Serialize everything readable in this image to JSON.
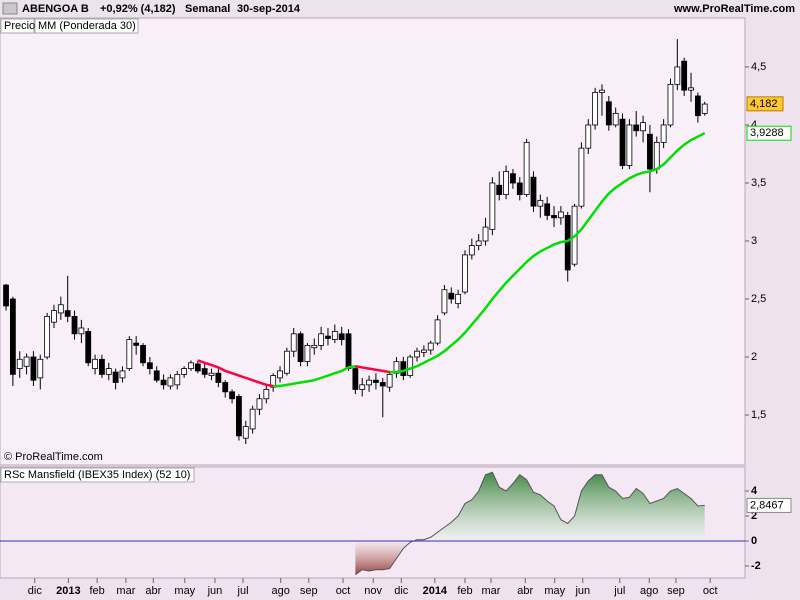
{
  "header": {
    "symbol": "ABENGOA B",
    "change": "+0,92% (4,182)",
    "period": "Semanal",
    "date": "30-sep-2014",
    "site": "www.ProRealTime.com",
    "copyright": "© ProRealTime.com"
  },
  "chart_data": [
    {
      "type": "candlestick",
      "legend_price": "Precio",
      "xlim": [
        -0.88,
        107.88
      ],
      "xticks": [
        {
          "value": 4.2,
          "label": "dic"
        },
        {
          "value": 9.1,
          "label": "2013"
        },
        {
          "value": 13.3,
          "label": "feb"
        },
        {
          "value": 17.5,
          "label": "mar"
        },
        {
          "value": 21.5,
          "label": "abr"
        },
        {
          "value": 26.1,
          "label": "may"
        },
        {
          "value": 30.5,
          "label": "jun"
        },
        {
          "value": 34.6,
          "label": "jul"
        },
        {
          "value": 40.1,
          "label": "ago"
        },
        {
          "value": 44.2,
          "label": "sep"
        },
        {
          "value": 49.2,
          "label": "oct"
        },
        {
          "value": 53.6,
          "label": "nov"
        },
        {
          "value": 57.7,
          "label": "dic"
        },
        {
          "value": 62.6,
          "label": "2014"
        },
        {
          "value": 67.0,
          "label": "feb"
        },
        {
          "value": 70.8,
          "label": "mar"
        },
        {
          "value": 75.8,
          "label": "abr"
        },
        {
          "value": 80.1,
          "label": "may"
        },
        {
          "value": 84.2,
          "label": "jun"
        },
        {
          "value": 89.6,
          "label": "jul"
        },
        {
          "value": 93.9,
          "label": "ago"
        },
        {
          "value": 97.8,
          "label": "sep"
        },
        {
          "value": 102.8,
          "label": "oct"
        }
      ],
      "ylim": [
        1.069,
        4.922
      ],
      "yticks": [
        {
          "value": 1.5,
          "label": "1,5"
        },
        2,
        {
          "value": 2.5,
          "label": "2,5"
        },
        3,
        {
          "value": 3.5,
          "label": "3,5"
        },
        4,
        {
          "value": 4.5,
          "label": "4,5"
        }
      ],
      "up_color": "#ffffff",
      "down_color": "#000000",
      "ohlc": [
        [
          2.62,
          2.63,
          2.4,
          2.44
        ],
        [
          2.5,
          2.52,
          1.75,
          1.85
        ],
        [
          1.9,
          2.05,
          1.82,
          1.98
        ],
        [
          1.92,
          2.03,
          1.85,
          2.0
        ],
        [
          2.0,
          2.05,
          1.75,
          1.8
        ],
        [
          1.82,
          2.02,
          1.72,
          1.98
        ],
        [
          2.0,
          2.38,
          1.98,
          2.35
        ],
        [
          2.3,
          2.45,
          2.25,
          2.4
        ],
        [
          2.38,
          2.52,
          2.32,
          2.45
        ],
        [
          2.4,
          2.7,
          2.3,
          2.35
        ],
        [
          2.35,
          2.4,
          2.15,
          2.2
        ],
        [
          2.2,
          2.32,
          2.12,
          2.25
        ],
        [
          2.22,
          2.25,
          1.92,
          1.95
        ],
        [
          1.9,
          2.02,
          1.85,
          1.98
        ],
        [
          1.98,
          2.02,
          1.82,
          1.85
        ],
        [
          1.85,
          1.95,
          1.8,
          1.9
        ],
        [
          1.87,
          1.9,
          1.72,
          1.78
        ],
        [
          1.82,
          1.92,
          1.78,
          1.88
        ],
        [
          1.9,
          2.18,
          1.88,
          2.15
        ],
        [
          2.12,
          2.18,
          2.02,
          2.1
        ],
        [
          2.1,
          2.12,
          1.92,
          1.95
        ],
        [
          1.95,
          2.0,
          1.85,
          1.9
        ],
        [
          1.88,
          1.92,
          1.78,
          1.8
        ],
        [
          1.8,
          1.85,
          1.72,
          1.76
        ],
        [
          1.75,
          1.85,
          1.72,
          1.82
        ],
        [
          1.76,
          1.88,
          1.72,
          1.85
        ],
        [
          1.85,
          1.92,
          1.82,
          1.9
        ],
        [
          1.9,
          1.97,
          1.88,
          1.95
        ],
        [
          1.94,
          1.97,
          1.86,
          1.88
        ],
        [
          1.9,
          1.94,
          1.82,
          1.85
        ],
        [
          1.84,
          1.9,
          1.8,
          1.86
        ],
        [
          1.86,
          1.9,
          1.74,
          1.78
        ],
        [
          1.78,
          1.8,
          1.65,
          1.7
        ],
        [
          1.7,
          1.72,
          1.6,
          1.64
        ],
        [
          1.66,
          1.68,
          1.28,
          1.32
        ],
        [
          1.3,
          1.45,
          1.25,
          1.4
        ],
        [
          1.38,
          1.58,
          1.34,
          1.55
        ],
        [
          1.55,
          1.68,
          1.5,
          1.64
        ],
        [
          1.64,
          1.76,
          1.6,
          1.72
        ],
        [
          1.74,
          1.86,
          1.7,
          1.84
        ],
        [
          1.82,
          1.92,
          1.78,
          1.88
        ],
        [
          1.86,
          2.08,
          1.84,
          2.05
        ],
        [
          2.05,
          2.25,
          2.0,
          2.2
        ],
        [
          2.2,
          2.22,
          1.92,
          1.96
        ],
        [
          1.96,
          2.12,
          1.92,
          2.1
        ],
        [
          2.08,
          2.16,
          2.02,
          2.1
        ],
        [
          2.1,
          2.26,
          2.06,
          2.2
        ],
        [
          2.18,
          2.25,
          2.1,
          2.16
        ],
        [
          2.15,
          2.28,
          2.12,
          2.22
        ],
        [
          2.2,
          2.26,
          2.1,
          2.15
        ],
        [
          2.2,
          2.24,
          1.88,
          1.9
        ],
        [
          1.9,
          1.92,
          1.68,
          1.72
        ],
        [
          1.72,
          1.82,
          1.66,
          1.76
        ],
        [
          1.76,
          1.84,
          1.7,
          1.8
        ],
        [
          1.8,
          1.86,
          1.72,
          1.78
        ],
        [
          1.78,
          1.82,
          1.48,
          1.75
        ],
        [
          1.74,
          1.88,
          1.7,
          1.85
        ],
        [
          1.86,
          2.0,
          1.82,
          1.96
        ],
        [
          1.96,
          2.0,
          1.8,
          1.84
        ],
        [
          1.84,
          2.02,
          1.82,
          2.0
        ],
        [
          2.0,
          2.08,
          1.96,
          2.05
        ],
        [
          2.04,
          2.1,
          2.0,
          2.06
        ],
        [
          2.06,
          2.14,
          2.02,
          2.12
        ],
        [
          2.12,
          2.36,
          2.1,
          2.32
        ],
        [
          2.38,
          2.62,
          2.36,
          2.58
        ],
        [
          2.55,
          2.6,
          2.46,
          2.5
        ],
        [
          2.46,
          2.58,
          2.42,
          2.54
        ],
        [
          2.56,
          2.92,
          2.54,
          2.88
        ],
        [
          2.88,
          3.02,
          2.84,
          2.96
        ],
        [
          2.96,
          3.06,
          2.92,
          3.0
        ],
        [
          3.0,
          3.2,
          2.96,
          3.12
        ],
        [
          3.1,
          3.55,
          3.05,
          3.5
        ],
        [
          3.48,
          3.6,
          3.35,
          3.4
        ],
        [
          3.4,
          3.65,
          3.36,
          3.6
        ],
        [
          3.58,
          3.62,
          3.45,
          3.5
        ],
        [
          3.5,
          3.55,
          3.35,
          3.4
        ],
        [
          3.4,
          3.88,
          3.38,
          3.85
        ],
        [
          3.55,
          3.6,
          3.25,
          3.3
        ],
        [
          3.3,
          3.4,
          3.2,
          3.35
        ],
        [
          3.32,
          3.38,
          3.18,
          3.22
        ],
        [
          3.22,
          3.3,
          3.12,
          3.2
        ],
        [
          3.2,
          3.3,
          3.14,
          3.25
        ],
        [
          3.22,
          3.25,
          2.65,
          2.75
        ],
        [
          2.8,
          3.32,
          2.78,
          3.3
        ],
        [
          3.3,
          3.85,
          3.28,
          3.8
        ],
        [
          3.8,
          4.05,
          3.75,
          4.0
        ],
        [
          4.0,
          4.32,
          3.96,
          4.28
        ],
        [
          4.28,
          4.35,
          4.08,
          4.3
        ],
        [
          4.2,
          4.25,
          3.95,
          4.0
        ],
        [
          4.0,
          4.15,
          3.98,
          4.1
        ],
        [
          4.05,
          4.1,
          3.62,
          3.65
        ],
        [
          3.65,
          4.05,
          3.62,
          4.0
        ],
        [
          4.0,
          4.12,
          3.9,
          3.95
        ],
        [
          3.95,
          4.08,
          3.85,
          4.02
        ],
        [
          3.92,
          4.0,
          3.42,
          3.62
        ],
        [
          3.62,
          3.9,
          3.58,
          3.85
        ],
        [
          3.85,
          4.05,
          3.8,
          4.0
        ],
        [
          4.0,
          4.4,
          3.98,
          4.35
        ],
        [
          4.35,
          4.74,
          4.3,
          4.5
        ],
        [
          4.55,
          4.58,
          4.25,
          4.3
        ],
        [
          4.3,
          4.45,
          4.2,
          4.32
        ],
        [
          4.25,
          4.28,
          4.02,
          4.08
        ],
        [
          4.1,
          4.2,
          4.08,
          4.18
        ]
      ],
      "last": {
        "value": 4.182,
        "label": "4,182"
      },
      "ma": {
        "name": "MM (Ponderada 30)",
        "color_up": "#00e000",
        "color_down": "#ff0040",
        "last": {
          "value": 3.9288,
          "label": "3,9288"
        },
        "values": [
          null,
          null,
          null,
          null,
          null,
          null,
          null,
          null,
          null,
          null,
          null,
          null,
          null,
          null,
          null,
          null,
          null,
          null,
          null,
          null,
          null,
          null,
          null,
          null,
          null,
          null,
          null,
          null,
          1.97,
          1.95,
          1.93,
          1.91,
          1.88,
          1.86,
          1.84,
          1.82,
          1.8,
          1.78,
          1.76,
          1.75,
          1.75,
          1.76,
          1.77,
          1.78,
          1.79,
          1.8,
          1.82,
          1.84,
          1.86,
          1.88,
          1.91,
          1.92,
          1.91,
          1.9,
          1.89,
          1.88,
          1.87,
          1.87,
          1.88,
          1.9,
          1.92,
          1.95,
          1.98,
          2.01,
          2.05,
          2.1,
          2.15,
          2.21,
          2.28,
          2.35,
          2.42,
          2.5,
          2.57,
          2.64,
          2.7,
          2.76,
          2.82,
          2.87,
          2.91,
          2.94,
          2.97,
          2.99,
          3.0,
          3.04,
          3.1,
          3.18,
          3.26,
          3.34,
          3.41,
          3.46,
          3.5,
          3.54,
          3.57,
          3.59,
          3.6,
          3.62,
          3.66,
          3.72,
          3.78,
          3.83,
          3.87,
          3.9,
          3.93
        ]
      }
    },
    {
      "type": "area",
      "title": "RSc Mansfield (IBEX35 Index) (52 10)",
      "ylim": [
        -2.96,
        5.92
      ],
      "yticks": [
        -2,
        0,
        2,
        4
      ],
      "zero_color": "#3030c0",
      "pos_color": "#2e7d32",
      "neg_color": "#8b2a2a",
      "last": {
        "value": 2.8467,
        "label": "2,8467"
      },
      "values": [
        null,
        null,
        null,
        null,
        null,
        null,
        null,
        null,
        null,
        null,
        null,
        null,
        null,
        null,
        null,
        null,
        null,
        null,
        null,
        null,
        null,
        null,
        null,
        null,
        null,
        null,
        null,
        null,
        null,
        null,
        null,
        null,
        null,
        null,
        null,
        null,
        null,
        null,
        null,
        null,
        null,
        null,
        null,
        null,
        null,
        null,
        null,
        null,
        null,
        null,
        null,
        -2.7,
        -2.3,
        -2.4,
        -2.3,
        -2.3,
        -2.2,
        -1.4,
        -0.6,
        -0.1,
        0.1,
        0.1,
        0.3,
        0.7,
        1.1,
        1.5,
        2.0,
        3.0,
        3.3,
        4.0,
        5.3,
        5.5,
        4.3,
        4.0,
        4.6,
        5.3,
        4.9,
        3.9,
        3.7,
        3.2,
        2.8,
        1.7,
        1.4,
        2.0,
        4.0,
        4.8,
        5.3,
        5.3,
        4.3,
        4.0,
        3.4,
        3.5,
        4.2,
        3.8,
        3.0,
        3.2,
        3.4,
        4.0,
        4.2,
        3.8,
        3.4,
        2.8,
        2.85
      ]
    }
  ]
}
